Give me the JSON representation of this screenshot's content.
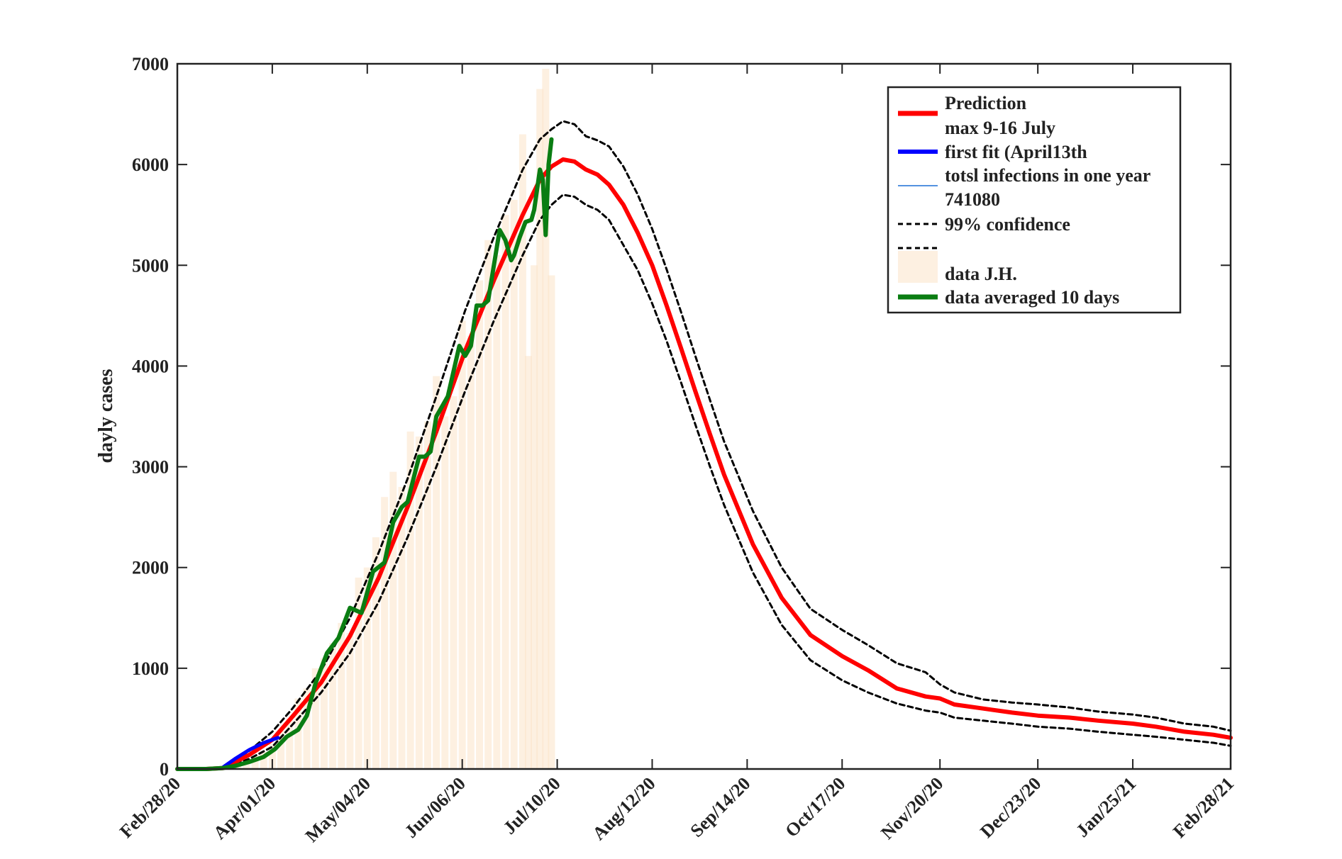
{
  "chart_data": {
    "type": "line",
    "title": "",
    "xlabel": "",
    "ylabel": "dayly cases",
    "xlim": [
      0,
      366
    ],
    "ylim": [
      0,
      7000
    ],
    "yticks": [
      0,
      1000,
      2000,
      3000,
      4000,
      5000,
      6000,
      7000
    ],
    "x_tick_positions": [
      0,
      33,
      66,
      99,
      132,
      165,
      198,
      231,
      265,
      299,
      332,
      366
    ],
    "x_tick_labels": [
      "Feb/28/20",
      "Apr/01/20",
      "May/04/20",
      "Jun/06/20",
      "Jul/10/20",
      "Aug/12/20",
      "Sep/14/20",
      "Oct/17/20",
      "Nov/20/20",
      "Dec/23/20",
      "Jan/25/21",
      "Feb/28/21"
    ],
    "grid": false,
    "legend_position": "top-right",
    "legend": [
      {
        "label": "Prediction",
        "style": "red-thick"
      },
      {
        "label": "max 9-16 July",
        "style": "none"
      },
      {
        "label": "first fit (April13th",
        "style": "blue-thick"
      },
      {
        "label": "totsl infections in one year",
        "style": "blue-thin"
      },
      {
        "label": "741080",
        "style": "none"
      },
      {
        "label": "99% confidence",
        "style": "black-dashed"
      },
      {
        "label": "",
        "style": "black-dashed"
      },
      {
        "label": "data J.H.",
        "style": "bar-patch"
      },
      {
        "label": "data averaged 10 days",
        "style": "green-thick"
      }
    ],
    "colors": {
      "prediction": "#ff0000",
      "first_fit": "#0000ff",
      "total_infections": "#1a6fd6",
      "confidence": "#000000",
      "data_bars": "#fbe3c8",
      "data_averaged": "#0a7d12",
      "axis": "#222222"
    },
    "series": [
      {
        "name": "Prediction",
        "x": [
          0,
          10,
          16,
          25,
          33,
          40,
          50,
          60,
          70,
          80,
          90,
          100,
          110,
          120,
          126,
          130,
          134,
          138,
          142,
          146,
          150,
          155,
          160,
          165,
          170,
          175,
          180,
          185,
          190,
          200,
          210,
          220,
          231,
          240,
          250,
          260,
          265,
          270,
          280,
          290,
          299,
          310,
          320,
          332,
          340,
          350,
          360,
          366
        ],
        "y": [
          0,
          0,
          10,
          140,
          290,
          520,
          860,
          1320,
          1900,
          2600,
          3350,
          4150,
          4850,
          5500,
          5850,
          5980,
          6050,
          6030,
          5950,
          5900,
          5800,
          5600,
          5320,
          5000,
          4600,
          4180,
          3750,
          3330,
          2920,
          2230,
          1700,
          1330,
          1120,
          980,
          800,
          720,
          700,
          640,
          600,
          560,
          530,
          510,
          480,
          450,
          420,
          370,
          340,
          310
        ]
      },
      {
        "name": "first fit (April13th",
        "x": [
          16,
          20,
          25,
          30,
          35
        ],
        "y": [
          20,
          100,
          190,
          260,
          310
        ]
      },
      {
        "name": "99% confidence upper",
        "x": [
          0,
          10,
          16,
          25,
          33,
          40,
          50,
          60,
          70,
          80,
          90,
          100,
          110,
          120,
          126,
          130,
          134,
          138,
          142,
          146,
          150,
          155,
          160,
          165,
          170,
          175,
          180,
          185,
          190,
          200,
          210,
          220,
          231,
          240,
          250,
          260,
          265,
          270,
          280,
          290,
          299,
          310,
          320,
          332,
          340,
          350,
          360,
          366
        ],
        "y": [
          0,
          0,
          20,
          180,
          370,
          600,
          980,
          1500,
          2150,
          2880,
          3700,
          4550,
          5280,
          5950,
          6250,
          6350,
          6430,
          6400,
          6280,
          6240,
          6180,
          5980,
          5700,
          5360,
          4960,
          4540,
          4100,
          3670,
          3250,
          2560,
          2000,
          1590,
          1380,
          1230,
          1050,
          960,
          840,
          760,
          690,
          660,
          640,
          610,
          570,
          540,
          510,
          450,
          420,
          380
        ]
      },
      {
        "name": "99% confidence lower",
        "x": [
          0,
          10,
          16,
          25,
          33,
          40,
          50,
          60,
          70,
          80,
          90,
          100,
          110,
          120,
          126,
          130,
          134,
          138,
          142,
          146,
          150,
          155,
          160,
          165,
          170,
          175,
          180,
          185,
          190,
          200,
          210,
          220,
          231,
          240,
          250,
          260,
          265,
          270,
          280,
          290,
          299,
          310,
          320,
          332,
          340,
          350,
          360,
          366
        ],
        "y": [
          0,
          0,
          5,
          100,
          220,
          440,
          760,
          1150,
          1660,
          2300,
          3000,
          3750,
          4450,
          5100,
          5450,
          5600,
          5700,
          5680,
          5600,
          5550,
          5450,
          5200,
          4950,
          4620,
          4250,
          3840,
          3420,
          3010,
          2620,
          1950,
          1430,
          1080,
          880,
          760,
          650,
          580,
          560,
          510,
          480,
          450,
          420,
          400,
          370,
          340,
          320,
          290,
          260,
          230
        ]
      },
      {
        "name": "data averaged 10 days",
        "x": [
          0,
          10,
          16,
          20,
          25,
          30,
          34,
          38,
          42,
          45,
          48,
          52,
          56,
          60,
          64,
          68,
          72,
          75,
          78,
          80,
          84,
          86,
          88,
          90,
          92,
          94,
          96,
          98,
          100,
          102,
          104,
          106,
          108,
          110,
          112,
          114,
          116,
          117,
          119,
          121,
          123,
          124,
          126,
          127,
          128,
          129,
          130
        ],
        "y": [
          0,
          0,
          10,
          30,
          70,
          120,
          200,
          320,
          390,
          530,
          850,
          1150,
          1300,
          1600,
          1550,
          1960,
          2050,
          2450,
          2600,
          2650,
          3100,
          3100,
          3150,
          3500,
          3600,
          3700,
          3950,
          4200,
          4100,
          4200,
          4600,
          4600,
          4650,
          5000,
          5350,
          5250,
          5050,
          5100,
          5280,
          5430,
          5450,
          5550,
          5950,
          5850,
          5300,
          6000,
          6250
        ]
      }
    ],
    "bars": {
      "name": "data J.H.",
      "x": [
        18,
        21,
        24,
        27,
        30,
        33,
        36,
        39,
        42,
        45,
        48,
        51,
        54,
        57,
        60,
        63,
        66,
        69,
        72,
        75,
        78,
        81,
        84,
        87,
        90,
        93,
        96,
        99,
        102,
        105,
        108,
        111,
        114,
        117,
        120,
        122,
        124,
        126,
        128,
        130
      ],
      "values": [
        20,
        40,
        80,
        130,
        170,
        250,
        380,
        500,
        700,
        800,
        1000,
        1100,
        1250,
        1450,
        1350,
        1900,
        2000,
        2300,
        2700,
        2950,
        2800,
        3350,
        3300,
        3450,
        3900,
        3500,
        3700,
        4450,
        4300,
        4850,
        5250,
        5100,
        5500,
        5650,
        6300,
        4100,
        5000,
        6750,
        6950,
        4900
      ]
    }
  }
}
